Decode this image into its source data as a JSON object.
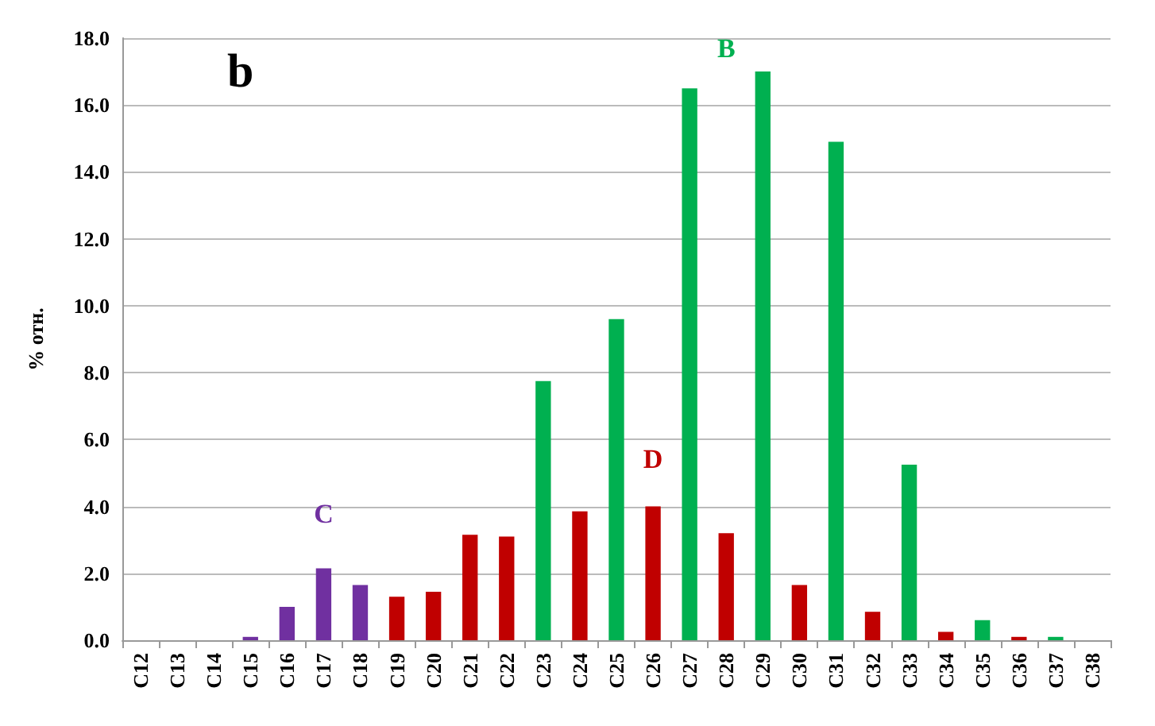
{
  "chart_data": {
    "type": "bar",
    "ylabel": "% отн.",
    "categories": [
      "C12",
      "C13",
      "C14",
      "C15",
      "C16",
      "C17",
      "C18",
      "C19",
      "C20",
      "C21",
      "C22",
      "C23",
      "C24",
      "C25",
      "C26",
      "C27",
      "C28",
      "C29",
      "C30",
      "C31",
      "C32",
      "C33",
      "C34",
      "C35",
      "C36",
      "C37",
      "C38"
    ],
    "values": [
      0,
      0,
      0,
      0.1,
      1.0,
      2.15,
      1.65,
      1.3,
      1.45,
      3.15,
      3.1,
      7.75,
      3.85,
      9.6,
      4.0,
      16.5,
      3.2,
      17.0,
      1.65,
      14.9,
      0.85,
      5.25,
      0.25,
      0.6,
      0.1,
      0.1,
      0
    ],
    "colors": [
      "#c00000",
      "#c00000",
      "#c00000",
      "#7030a0",
      "#7030a0",
      "#7030a0",
      "#7030a0",
      "#c00000",
      "#c00000",
      "#c00000",
      "#c00000",
      "#00b050",
      "#c00000",
      "#00b050",
      "#c00000",
      "#00b050",
      "#c00000",
      "#00b050",
      "#c00000",
      "#00b050",
      "#c00000",
      "#00b050",
      "#c00000",
      "#00b050",
      "#c00000",
      "#00b050",
      "#c00000"
    ],
    "ylim": [
      0,
      18
    ],
    "yticks": [
      {
        "value": 0,
        "label": "0.0"
      },
      {
        "value": 2,
        "label": "2.0"
      },
      {
        "value": 4,
        "label": "4.0"
      },
      {
        "value": 6,
        "label": "6.0"
      },
      {
        "value": 8,
        "label": "8.0"
      },
      {
        "value": 10,
        "label": "10.0"
      },
      {
        "value": 12,
        "label": "12.0"
      },
      {
        "value": 14,
        "label": "14.0"
      },
      {
        "value": 16,
        "label": "16.0"
      },
      {
        "value": 18,
        "label": "18.0"
      }
    ],
    "grid": "y",
    "annotations": [
      "b",
      "C",
      "D",
      "B"
    ]
  }
}
